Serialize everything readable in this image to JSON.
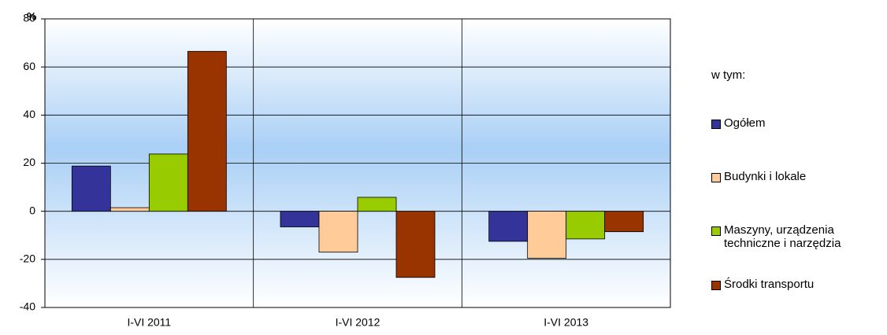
{
  "chart_data": {
    "type": "bar",
    "y_label": "%",
    "categories": [
      "I-VI 2011",
      "I-VI 2012",
      "I-VI 2013"
    ],
    "series": [
      {
        "name": "Ogółem",
        "color": "#333399",
        "values": [
          18.8,
          -6.5,
          -12.5
        ]
      },
      {
        "name": "Budynki i lokale",
        "color": "#ffcc99",
        "values": [
          1.5,
          -17,
          -19.5
        ]
      },
      {
        "name": "Maszyny, urządzenia techniczne i narzędzia",
        "color": "#99cc00",
        "values": [
          23.8,
          5.8,
          -11.5
        ]
      },
      {
        "name": "Środki transportu",
        "color": "#993300",
        "values": [
          66.5,
          -27.5,
          -8.5
        ]
      }
    ],
    "legend_title": "w tym:",
    "legend": "right",
    "ylim": [
      -40,
      80
    ],
    "yticks": [
      -40,
      -20,
      0,
      20,
      40,
      60,
      80
    ],
    "grid": true
  }
}
